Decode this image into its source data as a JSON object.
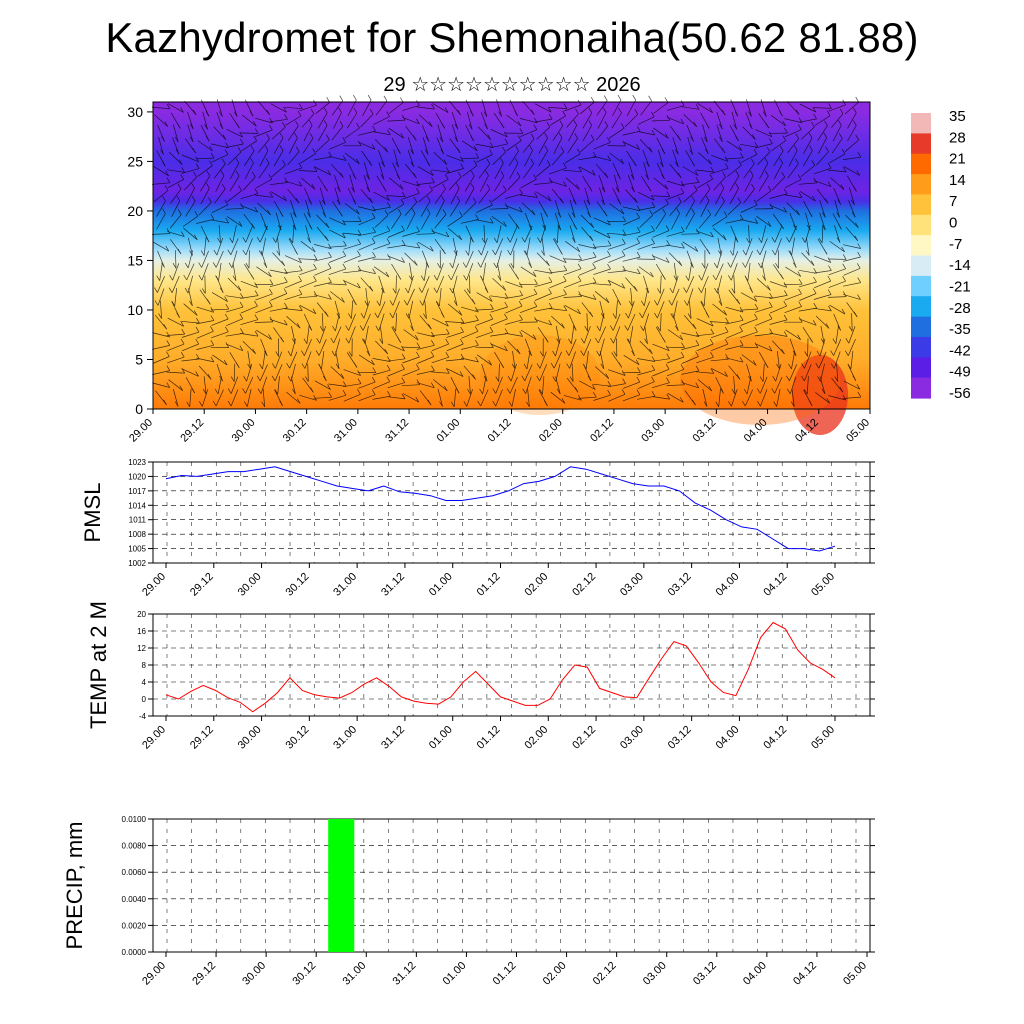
{
  "title": "Kazhydromet for Shemonaiha(50.62 81.88)",
  "subtitle": "29 ☆☆☆☆☆☆☆☆☆☆ 2026",
  "x_ticks": [
    "29.00",
    "29.12",
    "30.00",
    "30.12",
    "31.00",
    "31.12",
    "01.00",
    "01.12",
    "02.00",
    "02.12",
    "03.00",
    "03.12",
    "04.00",
    "04.12",
    "05.00"
  ],
  "chart_data": [
    {
      "type": "heatmap",
      "name": "vertical cross-section temperature with wind arrows",
      "y_ticks": [
        0,
        5,
        10,
        15,
        20,
        25,
        30
      ],
      "ylim": [
        0,
        31
      ],
      "colorbar_labels": [
        "35",
        "28",
        "21",
        "14",
        "7",
        "0",
        "-7",
        "-14",
        "-21",
        "-28",
        "-35",
        "-42",
        "-49",
        "-56"
      ],
      "colorbar_colors": [
        "#f2b7b7",
        "#e83a2a",
        "#ff6a00",
        "#ff9c1a",
        "#ffc23a",
        "#ffe27a",
        "#fff7c4",
        "#d8ecf5",
        "#6fd0ff",
        "#1aaaf0",
        "#1f6fe0",
        "#3b3be8",
        "#5a1ee6",
        "#8a2be2"
      ],
      "profile": [
        [
          0,
          12
        ],
        [
          5,
          6
        ],
        [
          10,
          2
        ],
        [
          13,
          -4
        ],
        [
          15,
          -12
        ],
        [
          16,
          -18
        ],
        [
          18,
          -30
        ],
        [
          20,
          -40
        ],
        [
          21,
          -50
        ],
        [
          22,
          -54
        ],
        [
          25,
          -50
        ],
        [
          30,
          -57
        ]
      ]
    },
    {
      "type": "line",
      "ylabel": "PMSL",
      "y_ticks": [
        1002,
        1005,
        1008,
        1011,
        1014,
        1017,
        1020,
        1023
      ],
      "ylim": [
        1002,
        1023
      ],
      "series_color": "#0000ff",
      "values": [
        1019.5,
        1020.2,
        1020.0,
        1020.5,
        1021.0,
        1021.0,
        1021.5,
        1022.0,
        1021.0,
        1020.0,
        1019.0,
        1018.0,
        1017.5,
        1017.0,
        1018.0,
        1016.8,
        1016.5,
        1016.0,
        1015.0,
        1015.0,
        1015.5,
        1016.0,
        1017.0,
        1018.5,
        1019.0,
        1020.0,
        1022.0,
        1021.5,
        1020.5,
        1019.5,
        1018.5,
        1018.0,
        1018.0,
        1017.0,
        1014.5,
        1013.0,
        1011.0,
        1009.5,
        1009.0,
        1007.0,
        1005.0,
        1005.0,
        1004.5,
        1005.5
      ]
    },
    {
      "type": "line",
      "ylabel": "TEMP at 2 M",
      "y_ticks": [
        -4,
        0,
        4,
        8,
        12,
        16,
        20
      ],
      "ylim": [
        -4,
        20
      ],
      "series_color": "#ff0000",
      "values": [
        1.0,
        0.0,
        1.8,
        3.2,
        2.0,
        0.3,
        -0.8,
        -3.0,
        -1.0,
        1.5,
        5.0,
        2.0,
        1.0,
        0.5,
        0.2,
        1.5,
        3.5,
        5.0,
        3.0,
        0.5,
        -0.5,
        -1.0,
        -1.2,
        0.5,
        4.0,
        6.5,
        3.5,
        0.5,
        -0.5,
        -1.5,
        -1.5,
        0.0,
        4.5,
        8.0,
        7.5,
        2.5,
        1.5,
        0.5,
        0.3,
        5.0,
        9.5,
        13.5,
        12.5,
        8.5,
        4.0,
        1.5,
        0.8,
        7.0,
        14.5,
        18.0,
        16.5,
        11.5,
        8.5,
        7.0,
        5.0
      ]
    },
    {
      "type": "bar",
      "ylabel": "PRECIP, mm",
      "y_ticks": [
        "0.0000",
        "0.0020",
        "0.0040",
        "0.0060",
        "0.0080",
        "0.0100"
      ],
      "ylim": [
        0,
        0.01
      ],
      "bar_color": "#00ff00",
      "bars": [
        {
          "x_from": "30.12",
          "x_to": "31.00",
          "value": 0.01
        }
      ]
    }
  ]
}
